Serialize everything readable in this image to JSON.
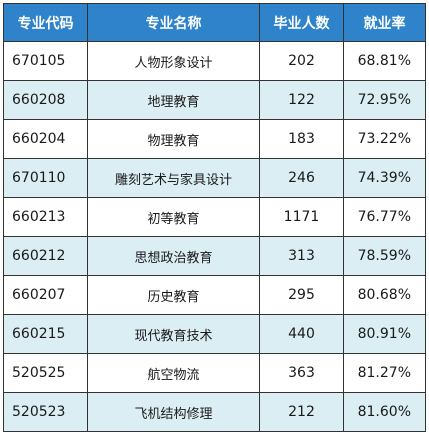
{
  "table": {
    "headers": [
      "专业代码",
      "专业名称",
      "毕业人数",
      "就业率"
    ],
    "rows": [
      {
        "code": "670105",
        "name": "人物形象设计",
        "count": "202",
        "rate": "68.81%"
      },
      {
        "code": "660208",
        "name": "地理教育",
        "count": "122",
        "rate": "72.95%"
      },
      {
        "code": "660204",
        "name": "物理教育",
        "count": "183",
        "rate": "73.22%"
      },
      {
        "code": "670110",
        "name": "雕刻艺术与家具设计",
        "count": "246",
        "rate": "74.39%"
      },
      {
        "code": "660213",
        "name": "初等教育",
        "count": "1171",
        "rate": "76.77%"
      },
      {
        "code": "660212",
        "name": "思想政治教育",
        "count": "313",
        "rate": "78.59%"
      },
      {
        "code": "660207",
        "name": "历史教育",
        "count": "295",
        "rate": "80.68%"
      },
      {
        "code": "660215",
        "name": "现代教育技术",
        "count": "440",
        "rate": "80.91%"
      },
      {
        "code": "520525",
        "name": "航空物流",
        "count": "363",
        "rate": "81.27%"
      },
      {
        "code": "520523",
        "name": "飞机结构修理",
        "count": "212",
        "rate": "81.60%"
      }
    ]
  },
  "colors": {
    "header_bg": "#2e83ca",
    "header_text": "#ffffff",
    "row_alt_bg": "#dbeef4",
    "row_bg": "#ffffff",
    "border": "#333333"
  }
}
